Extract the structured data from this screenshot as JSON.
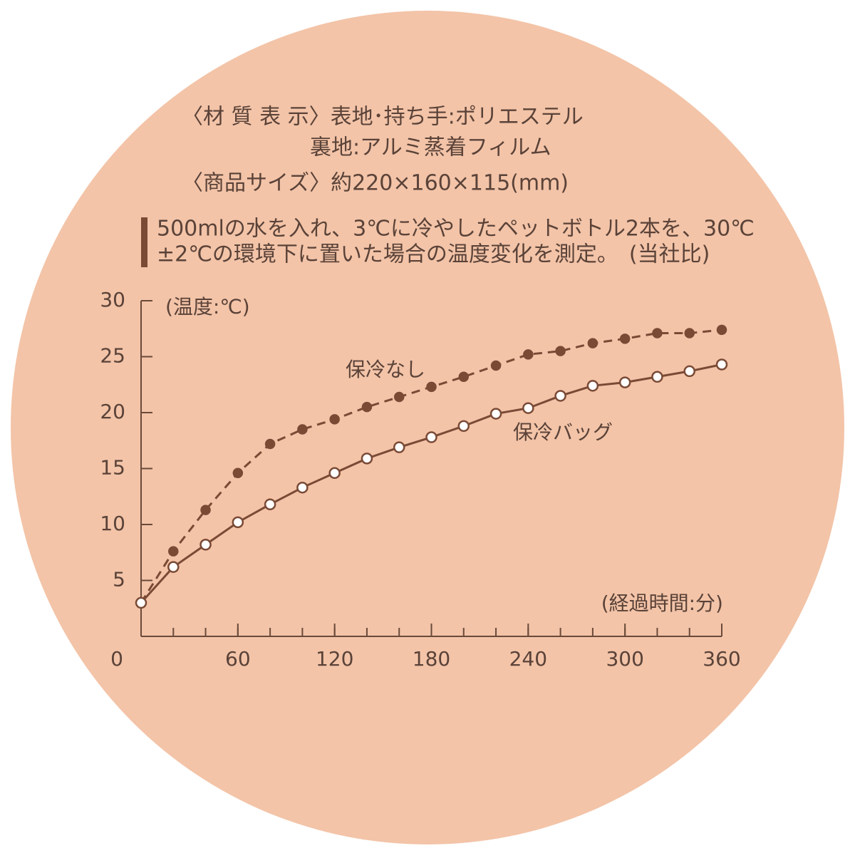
{
  "header": {
    "material_label": "〈材 質 表 示〉表地･持ち手:ポリエステル",
    "material_line2": "裏地:アルミ蒸着フィルム",
    "size": "〈商品サイズ〉約220×160×115(mm)",
    "note_line1": "500mlの水を入れ、3℃に冷やしたペットボトル2本を、30℃",
    "note_line2": "±2℃の環境下に置いた場合の温度変化を測定。　(当社比)"
  },
  "chart_data": {
    "type": "line",
    "y_label": "(温度:℃)",
    "x_label": "(経過時間:分)",
    "x": [
      0,
      20,
      40,
      60,
      80,
      100,
      120,
      140,
      160,
      180,
      200,
      220,
      240,
      260,
      280,
      300,
      320,
      340,
      360
    ],
    "series": [
      {
        "name": "保冷なし",
        "color": "#7a4a35",
        "line_style": "dashed",
        "marker": "filled",
        "values": [
          3,
          7.6,
          11.3,
          14.6,
          17.2,
          18.5,
          19.4,
          20.5,
          21.4,
          22.3,
          23.2,
          24.2,
          25.2,
          25.5,
          26.2,
          26.6,
          27.1,
          27.1,
          27.4
        ]
      },
      {
        "name": "保冷バッグ",
        "color": "#7a4a35",
        "line_style": "solid",
        "marker": "open",
        "values": [
          3,
          6.2,
          8.2,
          10.2,
          11.8,
          13.3,
          14.6,
          15.9,
          16.9,
          17.8,
          18.8,
          19.9,
          20.4,
          21.5,
          22.4,
          22.7,
          23.2,
          23.7,
          24.3
        ]
      }
    ],
    "xlim": [
      0,
      360
    ],
    "xticks": [
      0,
      60,
      120,
      180,
      240,
      300,
      360
    ],
    "ylim": [
      0,
      30
    ],
    "yticks": [
      5,
      10,
      15,
      20,
      25,
      30
    ]
  }
}
